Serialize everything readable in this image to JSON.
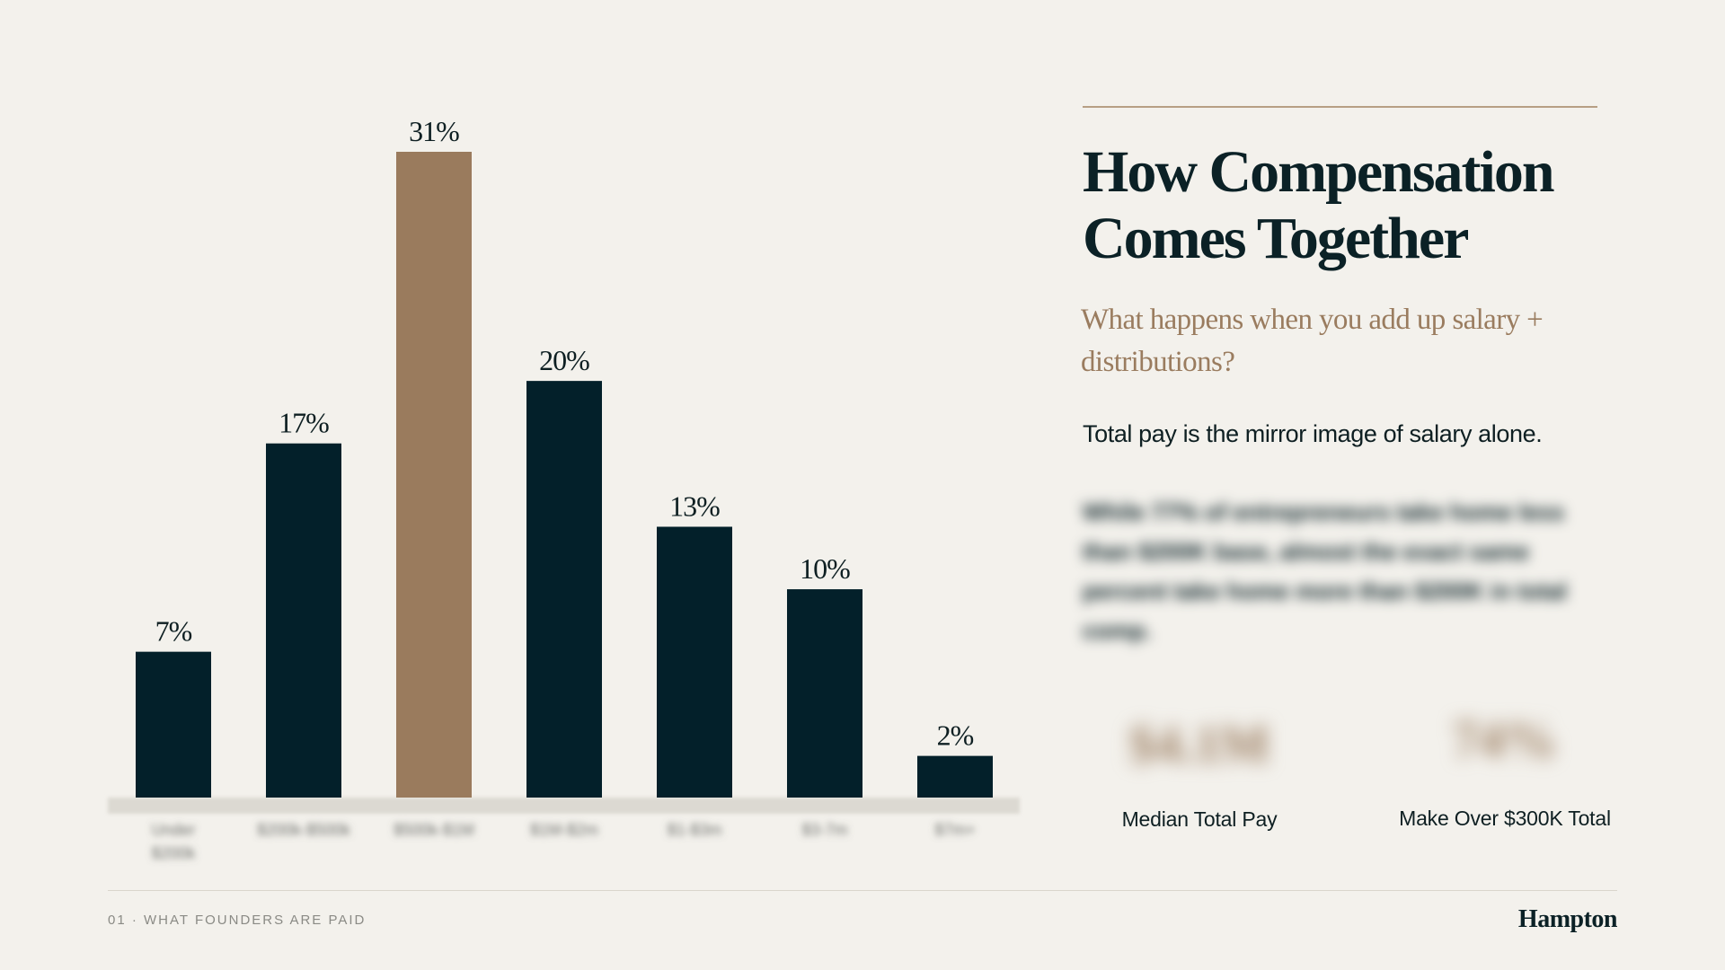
{
  "slide": {
    "title": "How Compensation Comes Together",
    "subtitle": "What happens when you add up salary + distributions?",
    "lead": "Total pay is the mirror image of salary alone.",
    "blurred_body": "While 77% of entrepreneurs take home less than $200K base, almost the exact same percent take home more than $200K in total comp.",
    "stats": {
      "median_total_pay_value": "$4.1M",
      "median_total_pay_label": "Median Total Pay",
      "over_300k_value": "74%",
      "over_300k_label": "Make Over $300K Total"
    },
    "footer_left": "01 · WHAT FOUNDERS ARE PAID",
    "footer_logo": "Hampton"
  },
  "colors": {
    "background": "#f3f1ec",
    "bar_default": "#03202a",
    "bar_highlight": "#9a7b5d",
    "value_label": "#0e1f22",
    "baseline": "#dcd9d2"
  },
  "chart_data": {
    "type": "bar",
    "categories": [
      "Under $200k",
      "$200k-$500k",
      "$500k-$1M",
      "$1M-$2m",
      "$1-$3m",
      "$3-7m",
      "$7m+"
    ],
    "values": [
      7,
      17,
      31,
      20,
      13,
      10,
      2
    ],
    "value_labels": [
      "7%",
      "17%",
      "31%",
      "20%",
      "13%",
      "10%",
      "2%"
    ],
    "highlight_index": 2,
    "ylim": [
      0,
      31
    ],
    "grid": false,
    "legend": "none",
    "xlabel": "",
    "ylabel": ""
  }
}
